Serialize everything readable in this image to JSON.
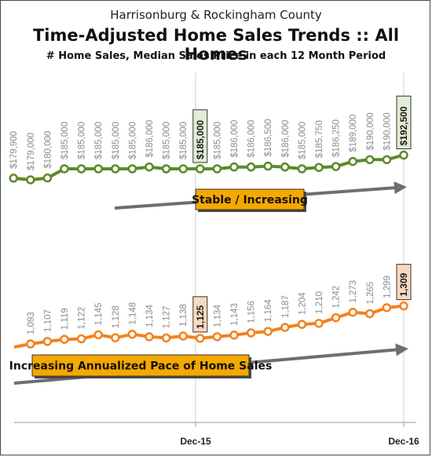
{
  "header": {
    "location": "Harrisonburg & Rockingham County",
    "title": "Time-Adjusted Home Sales Trends  ::  All Homes",
    "subtitle": "# Home Sales, Median Sales Price in each 12 Month Period"
  },
  "chart_data": {
    "type": "line",
    "x_ticks": [
      "Dec-15",
      "Dec-16"
    ],
    "series": [
      {
        "values": [
          179900,
          179000,
          180000,
          185000,
          185000,
          185000,
          185000,
          185000,
          186000,
          185000,
          185000,
          185000,
          185000,
          186000,
          186000,
          186500,
          186000,
          185000,
          185750,
          186250,
          189000,
          190000,
          190000,
          192500
        ],
        "labels": [
          "$179,900",
          "$179,000",
          "$180,000",
          "$185,000",
          "$185,000",
          "$185,000",
          "$185,000",
          "$185,000",
          "$186,000",
          "$185,000",
          "$185,000",
          "$185,000",
          "$185,000",
          "$186,000",
          "$186,000",
          "$186,500",
          "$186,000",
          "$185,000",
          "$185,750",
          "$186,250",
          "$189,000",
          "$190,000",
          "$190,000",
          "$192,500"
        ],
        "color": "#5b8a2a",
        "boxed_indices": [
          11,
          23
        ],
        "box_fill": "#e3ecd6"
      },
      {
        "values": [
          1093,
          1107,
          1119,
          1122,
          1145,
          1128,
          1148,
          1134,
          1127,
          1138,
          1125,
          1134,
          1143,
          1156,
          1164,
          1187,
          1204,
          1210,
          1242,
          1273,
          1265,
          1299,
          1309
        ],
        "labels": [
          "1,093",
          "1,107",
          "1,119",
          "1,122",
          "1,145",
          "1,128",
          "1,148",
          "1,134",
          "1,127",
          "1,138",
          "1,125",
          "1,134",
          "1,143",
          "1,156",
          "1,164",
          "1,187",
          "1,204",
          "1,210",
          "1,242",
          "1,273",
          "1,265",
          "1,299",
          "1,309"
        ],
        "color": "#f2821e",
        "boxed_indices": [
          10,
          22
        ],
        "box_fill": "#f9d9bf"
      }
    ],
    "annotations": [
      {
        "text": "Stable / Increasing",
        "fill": "#f5a800"
      },
      {
        "text": "Increasing Annualized Pace of Home Sales",
        "fill": "#f5a800"
      }
    ]
  }
}
